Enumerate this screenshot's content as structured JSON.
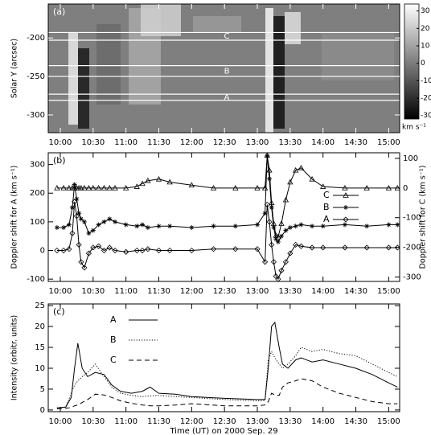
{
  "chart_data": [
    {
      "type": "image",
      "panel_label": "(a)",
      "ylabel": "Solar Y (arcsec)",
      "xlim": [
        589,
        910
      ],
      "xticks": [
        {
          "value": 600,
          "label": "10:00"
        },
        {
          "value": 630,
          "label": "10:30"
        },
        {
          "value": 660,
          "label": "11:00"
        },
        {
          "value": 690,
          "label": "11:30"
        },
        {
          "value": 720,
          "label": "12:00"
        },
        {
          "value": 750,
          "label": "12:30"
        },
        {
          "value": 780,
          "label": "13:00"
        },
        {
          "value": 810,
          "label": "13:30"
        },
        {
          "value": 840,
          "label": "14:00"
        },
        {
          "value": 870,
          "label": "14:30"
        },
        {
          "value": 900,
          "label": "15:00"
        }
      ],
      "ylim": [
        -323,
        -156
      ],
      "yticks": [
        -200,
        -250,
        -300
      ],
      "slits": [
        {
          "label": "C",
          "y": [
            -193,
            -203
          ]
        },
        {
          "label": "B",
          "y": [
            -236,
            -250
          ]
        },
        {
          "label": "A",
          "y": [
            -273,
            -281
          ]
        }
      ],
      "colorbar": {
        "lim": [
          -32,
          34
        ],
        "ticks": [
          30,
          20,
          10,
          0,
          -10,
          -20,
          -30
        ],
        "unit": "km s⁻¹"
      }
    },
    {
      "type": "line",
      "panel_label": "(b)",
      "ylabel": "Doppler shift for A (km s⁻¹)",
      "y2label": "Doppler shift for C (km s⁻¹)",
      "xlim": [
        589,
        910
      ],
      "xticks": [
        {
          "value": 600,
          "label": "10:00"
        },
        {
          "value": 630,
          "label": "10:30"
        },
        {
          "value": 660,
          "label": "11:00"
        },
        {
          "value": 690,
          "label": "11:30"
        },
        {
          "value": 720,
          "label": "12:00"
        },
        {
          "value": 750,
          "label": "12:30"
        },
        {
          "value": 780,
          "label": "13:00"
        },
        {
          "value": 810,
          "label": "13:30"
        },
        {
          "value": 840,
          "label": "14:00"
        },
        {
          "value": 870,
          "label": "14:30"
        },
        {
          "value": 900,
          "label": "15:00"
        }
      ],
      "ylim": [
        -108,
        341
      ],
      "yticks": [
        -100,
        0,
        100,
        200,
        300
      ],
      "y2lim": [
        -315,
        119
      ],
      "y2ticks": [
        -300,
        -200,
        -100,
        0,
        100
      ],
      "legend": "right",
      "x": [
        597,
        603,
        608,
        611,
        613,
        615,
        617,
        619,
        622,
        626,
        630,
        635,
        640,
        645,
        650,
        660,
        670,
        675,
        680,
        690,
        700,
        720,
        740,
        760,
        780,
        787,
        789,
        791,
        793,
        795,
        797,
        799,
        802,
        806,
        810,
        815,
        820,
        830,
        840,
        860,
        880,
        900,
        908
      ],
      "series": [
        {
          "name": "C",
          "axis": "y2",
          "marker": "triangle",
          "color": "#000",
          "dash": "solid",
          "values": [
            0,
            0,
            0,
            0,
            0,
            0,
            0,
            0,
            0,
            0,
            0,
            0,
            0,
            0,
            0,
            0,
            5,
            15,
            25,
            30,
            20,
            10,
            0,
            0,
            0,
            0,
            110,
            60,
            -50,
            -120,
            -160,
            -165,
            -120,
            -40,
            20,
            60,
            68,
            30,
            5,
            0,
            0,
            0,
            0
          ]
        },
        {
          "name": "B",
          "marker": "asterisk",
          "color": "#000",
          "dash": "solid",
          "values": [
            80,
            80,
            90,
            150,
            230,
            180,
            130,
            110,
            100,
            60,
            70,
            90,
            100,
            110,
            100,
            90,
            85,
            90,
            80,
            85,
            85,
            80,
            85,
            85,
            90,
            130,
            330,
            250,
            150,
            80,
            40,
            30,
            50,
            70,
            80,
            85,
            90,
            85,
            85,
            90,
            85,
            90,
            90
          ]
        },
        {
          "name": "A",
          "marker": "diamond",
          "color": "#000",
          "dash": "solid",
          "values": [
            0,
            0,
            5,
            60,
            170,
            120,
            20,
            -40,
            -60,
            -10,
            10,
            15,
            0,
            10,
            0,
            -5,
            0,
            0,
            5,
            0,
            0,
            0,
            5,
            5,
            5,
            -40,
            160,
            100,
            20,
            -40,
            -90,
            -100,
            -70,
            -40,
            -10,
            20,
            15,
            10,
            10,
            10,
            10,
            10,
            10
          ]
        }
      ]
    },
    {
      "type": "line",
      "panel_label": "(c)",
      "ylabel": "Intensity (orbitr. units)",
      "xlabel": "Time (UT) on 2000 Sep. 29",
      "xlim": [
        589,
        910
      ],
      "xticks": [
        {
          "value": 600,
          "label": "10:00"
        },
        {
          "value": 630,
          "label": "10:30"
        },
        {
          "value": 660,
          "label": "11:00"
        },
        {
          "value": 690,
          "label": "11:30"
        },
        {
          "value": 720,
          "label": "12:00"
        },
        {
          "value": 750,
          "label": "12:30"
        },
        {
          "value": 780,
          "label": "13:00"
        },
        {
          "value": 810,
          "label": "13:30"
        },
        {
          "value": 840,
          "label": "14:00"
        },
        {
          "value": 870,
          "label": "14:30"
        },
        {
          "value": 900,
          "label": "15:00"
        }
      ],
      "ylim": [
        -0.4,
        25.4
      ],
      "yticks": [
        0,
        5,
        10,
        15,
        20,
        25
      ],
      "legend": "upper-left",
      "x": [
        597,
        605,
        610,
        613,
        616,
        620,
        625,
        632,
        640,
        647,
        655,
        665,
        675,
        682,
        690,
        705,
        720,
        750,
        780,
        787,
        790,
        793,
        796,
        800,
        803,
        808,
        815,
        820,
        830,
        840,
        855,
        870,
        885,
        900,
        908
      ],
      "series": [
        {
          "name": "A",
          "dash": "solid",
          "color": "#000",
          "values": [
            0.5,
            0.7,
            3,
            10,
            16,
            10,
            8,
            9,
            8.5,
            6,
            4.5,
            4,
            4.5,
            5.5,
            4,
            3.8,
            3.2,
            2.8,
            2.5,
            2.5,
            10,
            20,
            21,
            15,
            11,
            10,
            12,
            12.5,
            11.5,
            12,
            11,
            10,
            8.5,
            6.5,
            5.5
          ]
        },
        {
          "name": "B",
          "dash": "dotted",
          "color": "#000",
          "values": [
            0.5,
            0.7,
            4,
            6,
            7,
            8,
            9,
            11,
            8,
            5.5,
            4,
            3.5,
            3.2,
            3.4,
            3.5,
            3.2,
            3,
            2.5,
            2.2,
            2.3,
            12,
            14,
            12.5,
            11,
            10,
            11,
            13,
            15,
            14,
            14.5,
            13.5,
            13,
            11,
            9,
            8
          ]
        },
        {
          "name": "C",
          "dash": "dashed",
          "color": "#000",
          "values": [
            0.3,
            0.4,
            0.6,
            1,
            1.2,
            1.8,
            2.5,
            3.8,
            3.6,
            3,
            2.2,
            1.6,
            1.2,
            1,
            1,
            1.2,
            1.5,
            1,
            1,
            1.2,
            2,
            4,
            3.6,
            3.5,
            5.5,
            6.5,
            7,
            7.5,
            7,
            5.5,
            4,
            3,
            2,
            1.5,
            1.5
          ]
        }
      ]
    }
  ]
}
